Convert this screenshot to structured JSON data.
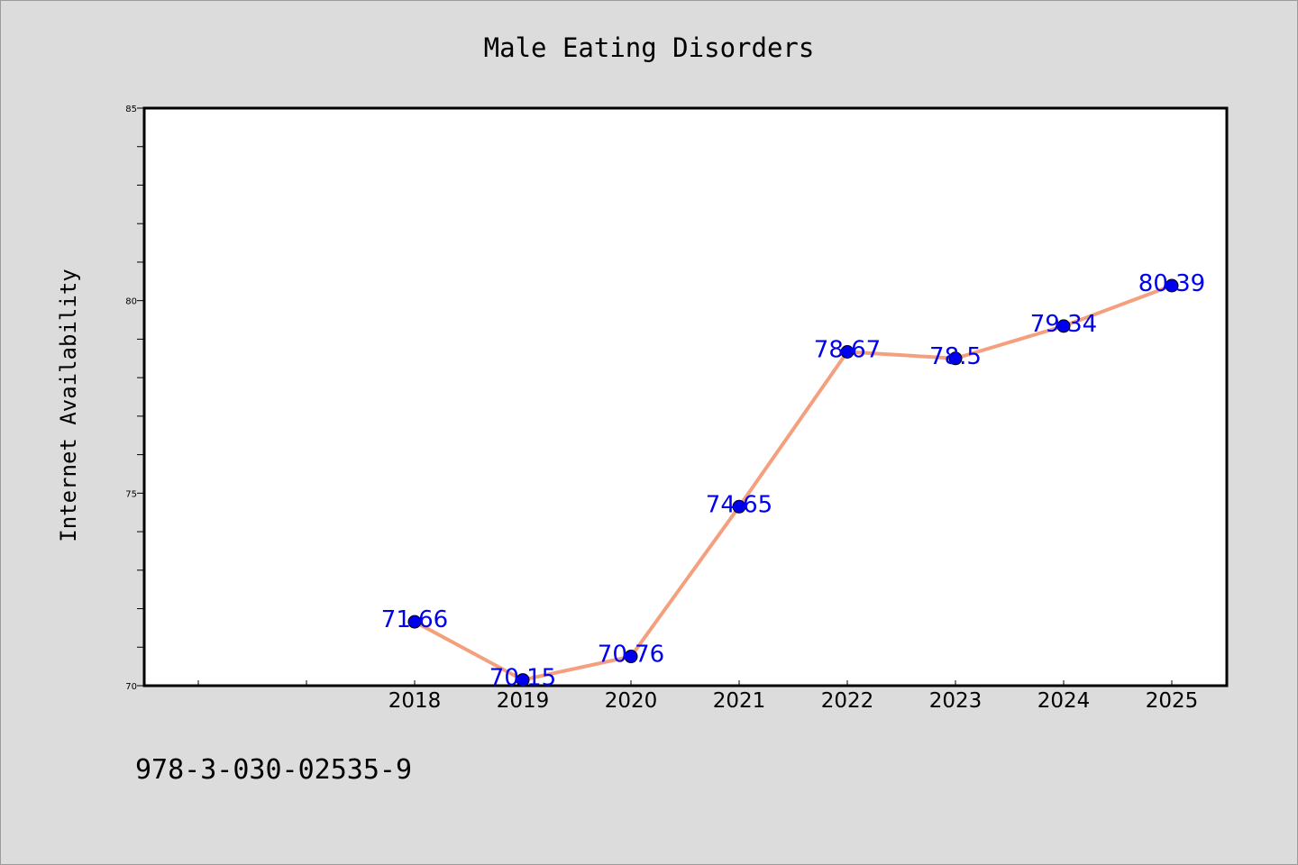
{
  "chart_data": {
    "type": "line",
    "title": "Male Eating Disorders",
    "xlabel": "",
    "ylabel": "Internet Availability",
    "categories": [
      "2018",
      "2019",
      "2020",
      "2021",
      "2022",
      "2023",
      "2024",
      "2025"
    ],
    "series": [
      {
        "values": [
          71.66,
          70.15,
          70.76,
          74.65,
          78.67,
          78.5,
          79.34,
          80.39
        ],
        "data_labels": [
          "71.66",
          "70.15",
          "70.76",
          "74.65",
          "78.67",
          "78.5",
          "79.34",
          "80.39"
        ],
        "line_color": "#f4a07e",
        "marker_color": "#0000ee"
      }
    ],
    "ylim": [
      70,
      85
    ],
    "yticks": [
      "70",
      "75",
      "80",
      "85"
    ],
    "grid": false,
    "legend": false
  },
  "footer": {
    "isbn": "978-3-030-02535-9"
  },
  "colors": {
    "background": "#dcdcdc",
    "plot_area": "#ffffff",
    "label_color": "#0000ee"
  }
}
